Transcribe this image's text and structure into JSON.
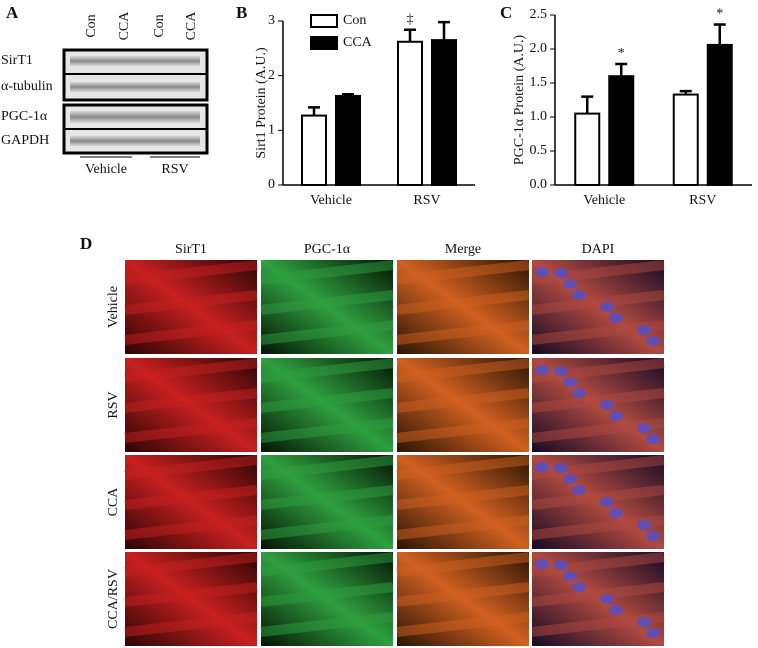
{
  "panels": {
    "a": "A",
    "b": "B",
    "c": "C",
    "d": "D"
  },
  "blot": {
    "columns": [
      "Con",
      "CCA",
      "Con",
      "CCA"
    ],
    "rows": [
      "SirT1",
      "α-tubulin",
      "PGC-1α",
      "GAPDH"
    ],
    "groups": [
      "Vehicle",
      "RSV"
    ]
  },
  "chart_data": [
    {
      "type": "bar",
      "ylabel": "Sirt1 Protein (A.U.)",
      "categories": [
        "Vehicle",
        "RSV"
      ],
      "series": [
        {
          "name": "Con",
          "color": "#ffffff",
          "values": [
            1.27,
            2.62
          ],
          "errors": [
            0.15,
            0.22
          ]
        },
        {
          "name": "CCA",
          "color": "#000000",
          "values": [
            1.63,
            2.65
          ],
          "errors": [
            0.03,
            0.33
          ]
        }
      ],
      "ylim": [
        0,
        3
      ],
      "yticks": [
        0,
        1,
        2,
        3
      ],
      "legend": "upper left",
      "annotations": [
        "‡"
      ]
    },
    {
      "type": "bar",
      "ylabel": "PGC-1α Protein (A.U.)",
      "categories": [
        "Vehicle",
        "RSV"
      ],
      "series": [
        {
          "name": "Con",
          "color": "#ffffff",
          "values": [
            1.05,
            1.33
          ],
          "errors": [
            0.25,
            0.05
          ]
        },
        {
          "name": "CCA",
          "color": "#000000",
          "values": [
            1.6,
            2.06
          ],
          "errors": [
            0.18,
            0.3
          ]
        }
      ],
      "ylim": [
        0,
        2.5
      ],
      "yticks": [
        {
          "value": 0,
          "label": "0.0"
        },
        {
          "value": 0.5,
          "label": "0.5"
        },
        {
          "value": 1,
          "label": "1.0"
        },
        {
          "value": 1.5,
          "label": "1.5"
        },
        {
          "value": 2,
          "label": "2.0"
        },
        {
          "value": 2.5,
          "label": "2.5"
        }
      ],
      "annotations": [
        "*",
        "*"
      ]
    }
  ],
  "micro": {
    "columns": [
      "SirT1",
      "PGC-1α",
      "Merge",
      "DAPI"
    ],
    "rows": [
      "Vehicle",
      "RSV",
      "CCA",
      "CCA/RSV"
    ]
  }
}
